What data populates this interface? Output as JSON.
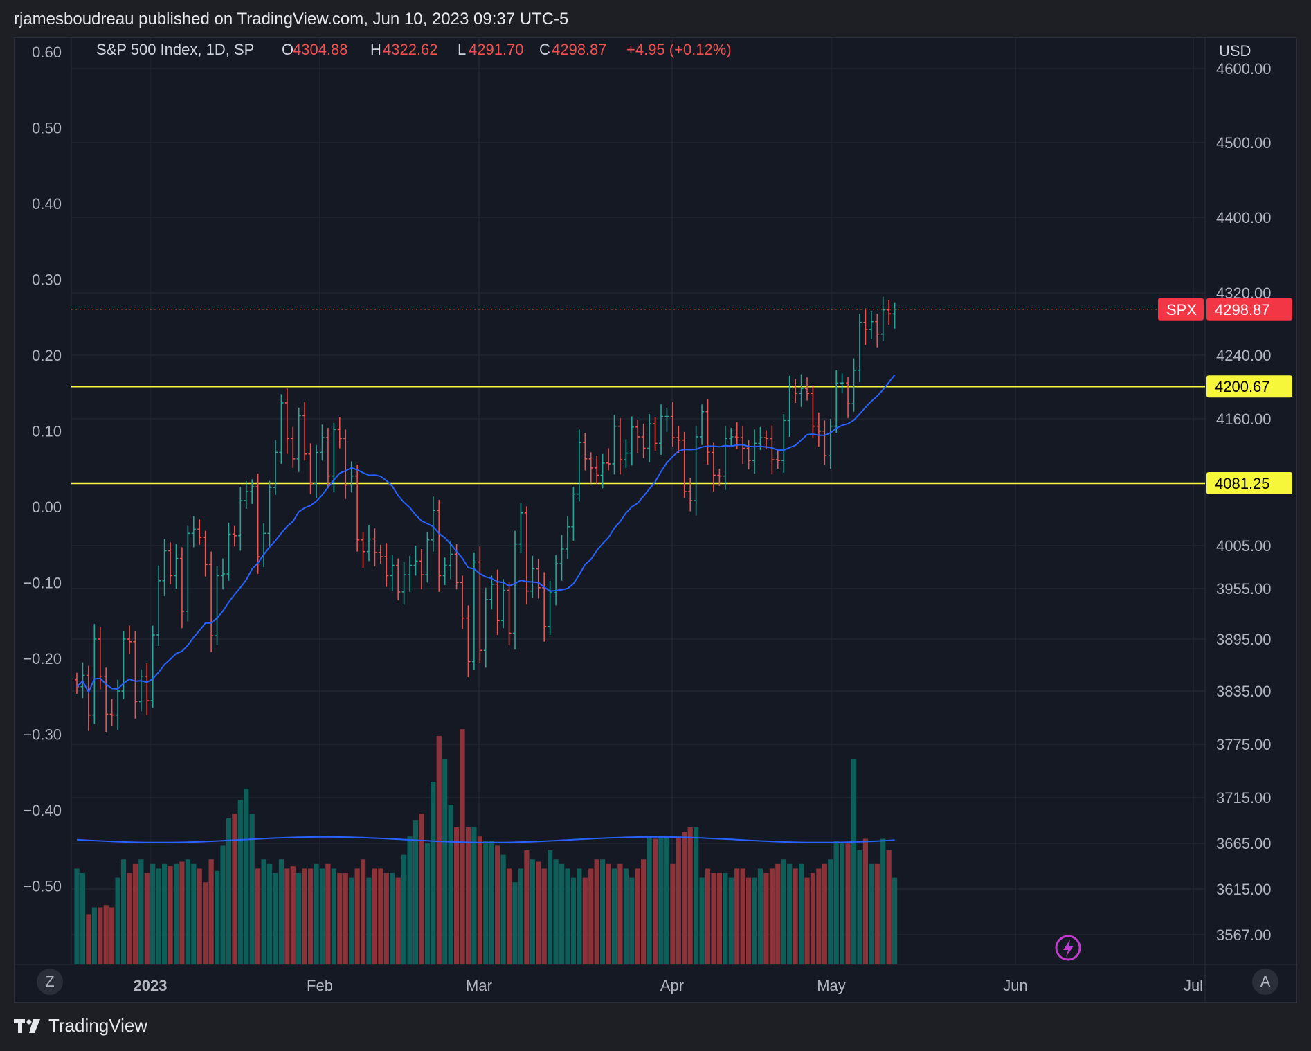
{
  "header": {
    "published_by": "rjamesboudreau published on TradingView.com, Jun 10, 2023 09:37 UTC-5"
  },
  "footer": {
    "brand": "TradingView"
  },
  "controls": {
    "left_button": "Z",
    "right_button": "A"
  },
  "legend": {
    "symbol_title": "S&P 500 Index, 1D, SP",
    "open_label": "O",
    "open_value": "4304.88",
    "high_label": "H",
    "high_value": "4322.62",
    "low_label": "L",
    "low_value": "4291.70",
    "close_label": "C",
    "close_value": "4298.87",
    "change": "+4.95 (+0.12%)"
  },
  "colors": {
    "up": "#26a69a",
    "down": "#ef5350",
    "volume_up": "#0e5e5a",
    "volume_down": "#8b3338",
    "ma": "#2962ff",
    "level_line": "#f6f63a",
    "price_tag": "#f23645",
    "background": "#151924",
    "grid": "#262b37"
  },
  "chart_data": {
    "type": "ohlc",
    "title": "S&P 500 Index, 1D, SP",
    "currency_label": "USD",
    "x_ticks": [
      "2023",
      "Feb",
      "Mar",
      "Apr",
      "May",
      "Jun",
      "Jul"
    ],
    "y_right_ticks": [
      "4600.00",
      "4500.00",
      "4400.00",
      "4320.00",
      "4240.00",
      "4160.00",
      "4005.00",
      "3955.00",
      "3895.00",
      "3835.00",
      "3775.00",
      "3715.00",
      "3665.00",
      "3615.00",
      "3567.00"
    ],
    "y_left_ticks": [
      "0.60",
      "0.50",
      "0.40",
      "0.30",
      "0.20",
      "0.10",
      "0.00",
      "−0.10",
      "−0.20",
      "−0.30",
      "−0.40",
      "−0.50"
    ],
    "horizontal_levels": [
      {
        "value": 4200.67,
        "label": "4200.67"
      },
      {
        "value": 4081.25,
        "label": "4081.25"
      }
    ],
    "last_price": {
      "symbol": "SPX",
      "value": 4298.87,
      "label": "4298.87"
    },
    "closes": [
      3840,
      3853,
      3808,
      3895,
      3852,
      3809,
      3808,
      3835,
      3895,
      3892,
      3823,
      3852,
      3824,
      3900,
      3964,
      3999,
      3970,
      3990,
      3928,
      4020,
      4025,
      4015,
      3983,
      3899,
      3970,
      3972,
      4019,
      4017,
      4060,
      4071,
      4077,
      3992,
      4020,
      4076,
      4119,
      4180,
      4136,
      4111,
      4164,
      4117,
      4081,
      4119,
      4137,
      4090,
      4147,
      4136,
      4079,
      4090,
      4012,
      3998,
      4013,
      3997,
      3992,
      3970,
      3982,
      3951,
      3971,
      3982,
      3987,
      3971,
      4012,
      4048,
      3970,
      3982,
      3995,
      3962,
      3920,
      3869,
      3986,
      3882,
      3942,
      3960,
      3917,
      3953,
      3902,
      4007,
      4045,
      3952,
      3978,
      3956,
      3910,
      3950,
      3984,
      4001,
      4028,
      4068,
      4131,
      4111,
      4100,
      4091,
      4106,
      4105,
      4151,
      4110,
      4118,
      4150,
      4138,
      4124,
      4154,
      4130,
      4163,
      4163,
      4137,
      4134,
      4071,
      4060,
      4138,
      4169,
      4119,
      4091,
      4090,
      4136,
      4138,
      4137,
      4124,
      4109,
      4130,
      4137,
      4136,
      4110,
      4109,
      4158,
      4199,
      4192,
      4198,
      4192,
      4151,
      4145,
      4115,
      4151,
      4205,
      4205,
      4179,
      4221,
      4282,
      4273,
      4283,
      4267,
      4298,
      4293,
      4298.87
    ],
    "volume_relative": [
      0.42,
      0.4,
      0.22,
      0.25,
      0.25,
      0.26,
      0.25,
      0.38,
      0.46,
      0.4,
      0.44,
      0.46,
      0.4,
      0.44,
      0.42,
      0.44,
      0.43,
      0.44,
      0.45,
      0.46,
      0.44,
      0.42,
      0.36,
      0.46,
      0.41,
      0.52,
      0.64,
      0.66,
      0.72,
      0.77,
      0.66,
      0.42,
      0.46,
      0.44,
      0.4,
      0.46,
      0.42,
      0.43,
      0.4,
      0.42,
      0.42,
      0.44,
      0.42,
      0.44,
      0.42,
      0.4,
      0.4,
      0.38,
      0.42,
      0.46,
      0.38,
      0.42,
      0.42,
      0.4,
      0.4,
      0.38,
      0.48,
      0.56,
      0.63,
      0.66,
      0.53,
      0.8,
      1.0,
      0.9,
      0.7,
      0.6,
      1.03,
      0.6,
      0.6,
      0.56,
      0.54,
      0.54,
      0.52,
      0.48,
      0.42,
      0.36,
      0.42,
      0.5,
      0.46,
      0.45,
      0.42,
      0.5,
      0.46,
      0.44,
      0.42,
      0.38,
      0.42,
      0.38,
      0.42,
      0.46,
      0.46,
      0.44,
      0.42,
      0.44,
      0.42,
      0.38,
      0.42,
      0.46,
      0.56,
      0.55,
      0.56,
      0.56,
      0.44,
      0.56,
      0.58,
      0.6,
      0.6,
      0.38,
      0.42,
      0.4,
      0.4,
      0.4,
      0.38,
      0.42,
      0.42,
      0.38,
      0.38,
      0.42,
      0.4,
      0.42,
      0.44,
      0.46,
      0.44,
      0.42,
      0.44,
      0.38,
      0.4,
      0.42,
      0.44,
      0.46,
      0.54,
      0.53,
      0.53,
      0.9,
      0.5,
      0.55,
      0.44,
      0.44,
      0.55,
      0.5,
      0.38
    ],
    "volume_ma_relative": 0.42
  }
}
